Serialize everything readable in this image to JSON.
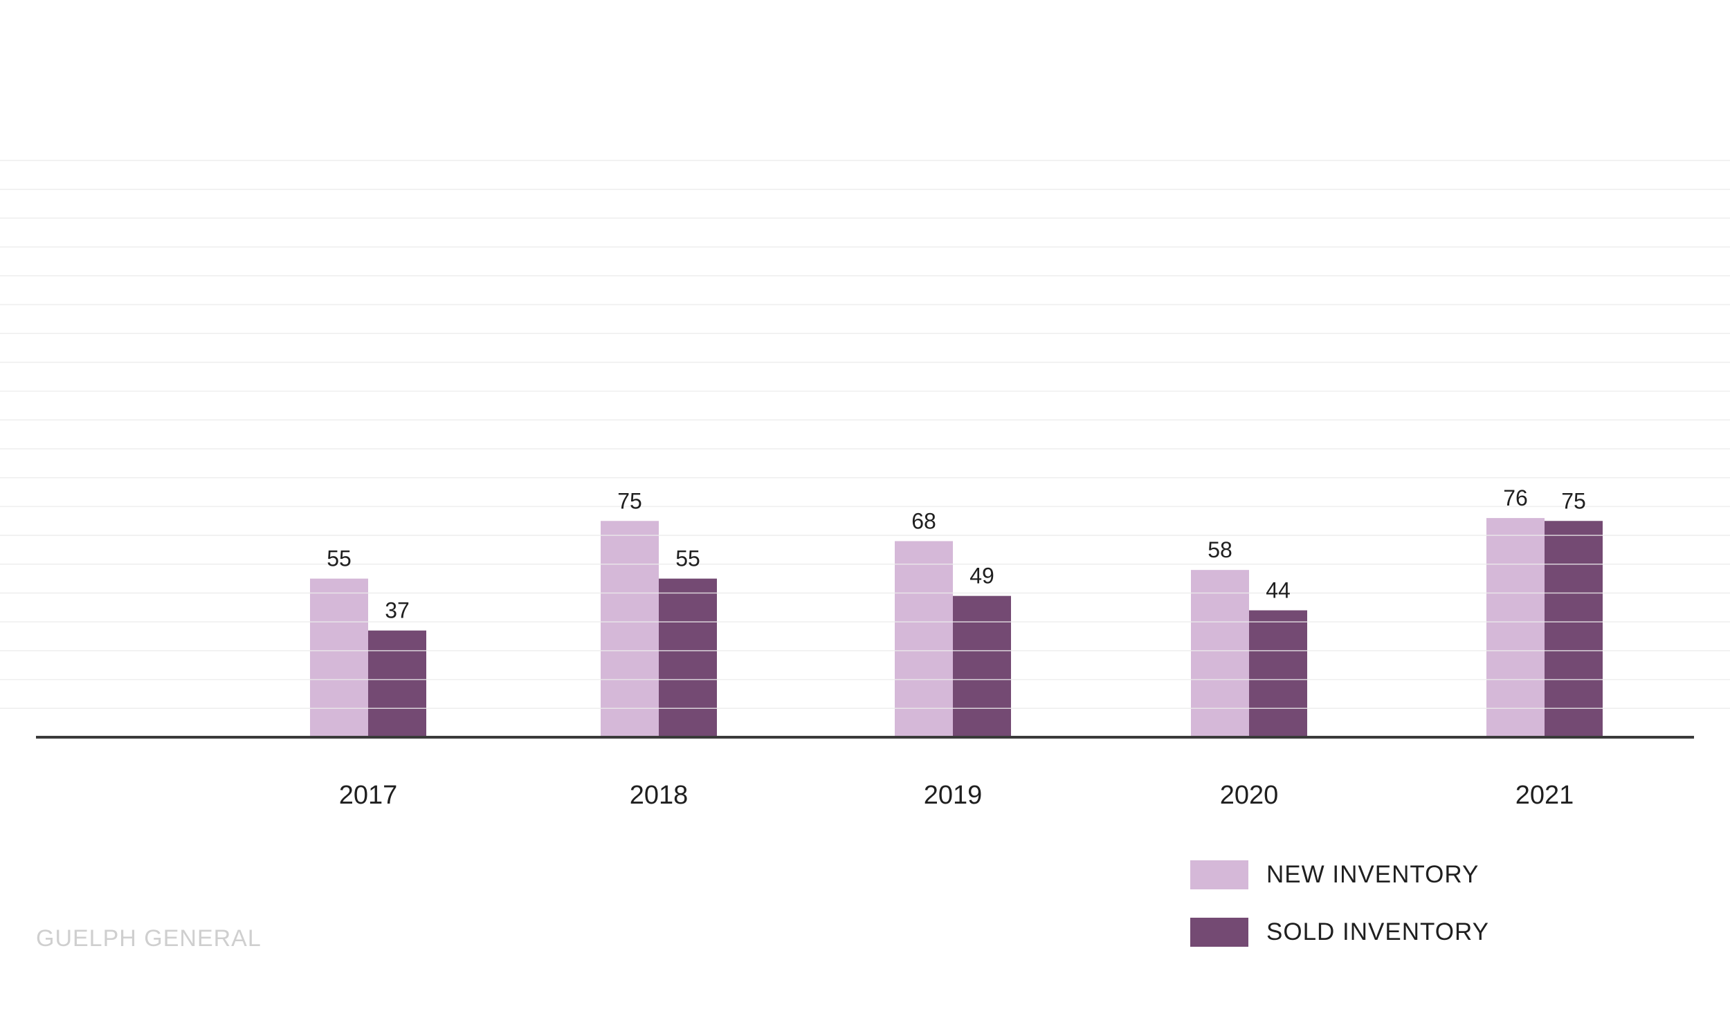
{
  "chart_data": {
    "type": "bar",
    "categories": [
      "2017",
      "2018",
      "2019",
      "2020",
      "2021"
    ],
    "series": [
      {
        "name": "NEW INVENTORY",
        "values": [
          55,
          75,
          68,
          58,
          76
        ],
        "color": "#d5b8d8"
      },
      {
        "name": "SOLD INVENTORY",
        "values": [
          37,
          55,
          49,
          44,
          75
        ],
        "color": "#744a73"
      }
    ],
    "ylim": [
      0,
      200
    ],
    "grid": true,
    "legend_position": "bottom-right"
  },
  "footer": {
    "source": "GUELPH GENERAL"
  }
}
